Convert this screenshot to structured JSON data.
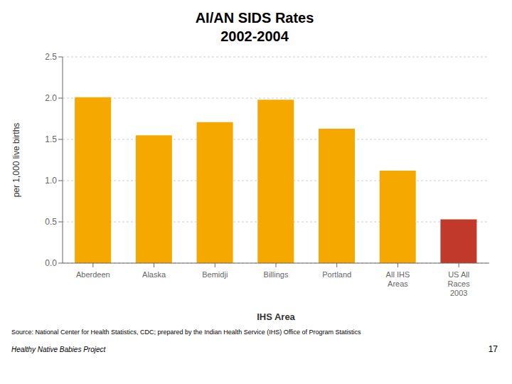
{
  "chart_data": {
    "type": "bar",
    "title": "AI/AN SIDS Rates",
    "subtitle": "2002-2004",
    "categories": [
      "Aberdeen",
      "Alaska",
      "Bemidji",
      "Billings",
      "Portland",
      "All IHS\nAreas",
      "US All\nRaces\n2003"
    ],
    "values": [
      2.01,
      1.55,
      1.71,
      1.98,
      1.63,
      1.12,
      0.53
    ],
    "colors": [
      "#F5A800",
      "#F5A800",
      "#F5A800",
      "#F5A800",
      "#F5A800",
      "#F5A800",
      "#C0392B"
    ],
    "xlabel": "IHS Area",
    "ylabel": "per 1,000 live births",
    "ylim": [
      0,
      2.5
    ],
    "yticks": [
      {
        "value": 0,
        "label": "0.0"
      },
      0.5,
      {
        "value": 1,
        "label": "1.0"
      },
      1.5,
      {
        "value": 2,
        "label": "2.0"
      },
      2.5
    ],
    "grid": true,
    "annotations": [
      "Source: National Center for Health Statistics, CDC; prepared by the Indian Health Service (IHS) Office of Program Statistics",
      "Healthy Native Babies Project",
      "17"
    ]
  }
}
